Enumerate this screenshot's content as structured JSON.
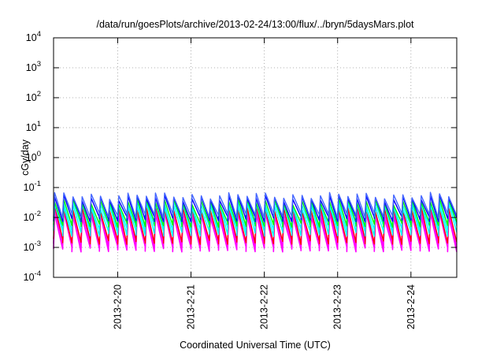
{
  "chart_data": {
    "type": "line",
    "title": "/data/run/goesPlots/archive/2013-02-24/13:00/flux/../bryn/5daysMars.plot",
    "xlabel": "Coordinated Universal Time (UTC)",
    "ylabel": "cGy/day",
    "yscale": "log",
    "ylim": [
      0.0001,
      10000
    ],
    "y_ticks": [
      {
        "base": "10",
        "exp": "-4",
        "value": 0.0001
      },
      {
        "base": "10",
        "exp": "-3",
        "value": 0.001
      },
      {
        "base": "10",
        "exp": "-2",
        "value": 0.01
      },
      {
        "base": "10",
        "exp": "-1",
        "value": 0.1
      },
      {
        "base": "10",
        "exp": "0",
        "value": 1
      },
      {
        "base": "10",
        "exp": "1",
        "value": 10
      },
      {
        "base": "10",
        "exp": "2",
        "value": 100
      },
      {
        "base": "10",
        "exp": "3",
        "value": 1000
      },
      {
        "base": "10",
        "exp": "4",
        "value": 10000
      }
    ],
    "xlim": [
      "2013-02-19T03:00",
      "2013-02-24T15:00"
    ],
    "x_ticks": [
      {
        "label": "2013-2-20",
        "value": "2013-02-20T00:00"
      },
      {
        "label": "2013-2-21",
        "value": "2013-02-21T00:00"
      },
      {
        "label": "2013-2-22",
        "value": "2013-02-22T00:00"
      },
      {
        "label": "2013-2-23",
        "value": "2013-02-23T00:00"
      },
      {
        "label": "2013-2-24",
        "value": "2013-02-24T00:00"
      }
    ],
    "grid": true,
    "pattern": "sawtooth, 3-hour period",
    "series": [
      {
        "color": "#ff00ff",
        "peak": 0.012,
        "trough": 0.0009
      },
      {
        "color": "#ff00ff",
        "peak": 0.016,
        "trough": 0.0012
      },
      {
        "color": "#ff0000",
        "peak": 0.02,
        "trough": 0.0016
      },
      {
        "color": "#00ffff",
        "peak": 0.025,
        "trough": 0.003
      },
      {
        "color": "#00ffff",
        "peak": 0.03,
        "trough": 0.0045
      },
      {
        "color": "#00ff00",
        "peak": 0.035,
        "trough": 0.006
      },
      {
        "color": "#0000ff",
        "peak": 0.045,
        "trough": 0.009
      },
      {
        "color": "#4466ff",
        "peak": 0.055,
        "trough": 0.012
      }
    ]
  }
}
